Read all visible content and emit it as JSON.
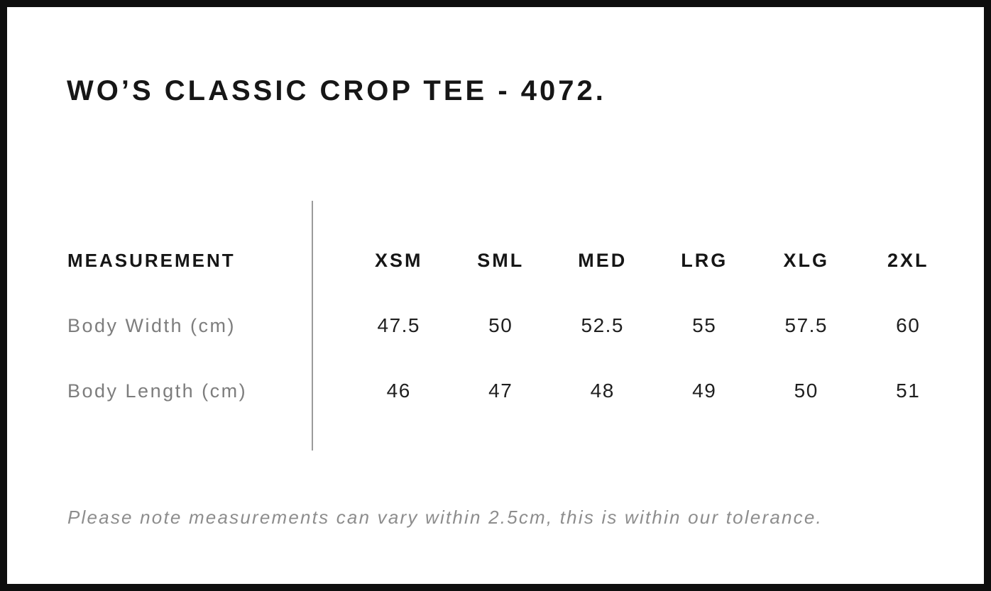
{
  "page": {
    "title": "WO’S CLASSIC CROP TEE - 4072."
  },
  "size_chart": {
    "measurement_header": "MEASUREMENT",
    "size_headers": [
      "XSM",
      "SML",
      "MED",
      "LRG",
      "XLG",
      "2XL"
    ],
    "rows": [
      {
        "label": "Body Width (cm)",
        "values": [
          "47.5",
          "50",
          "52.5",
          "55",
          "57.5",
          "60"
        ]
      },
      {
        "label": "Body Length (cm)",
        "values": [
          "46",
          "47",
          "48",
          "49",
          "50",
          "51"
        ]
      }
    ]
  },
  "footer": {
    "note": "Please note measurements can vary within 2.5cm, this is within our tolerance."
  },
  "chart_data": {
    "type": "table",
    "title": "WO’S CLASSIC CROP TEE - 4072.",
    "columns": [
      "MEASUREMENT",
      "XSM",
      "SML",
      "MED",
      "LRG",
      "XLG",
      "2XL"
    ],
    "rows": [
      [
        "Body Width (cm)",
        47.5,
        50,
        52.5,
        55,
        57.5,
        60
      ],
      [
        "Body Length (cm)",
        46,
        47,
        48,
        49,
        50,
        51
      ]
    ],
    "note": "Please note measurements can vary within 2.5cm, this is within our tolerance.",
    "layout": "measurement labels left of a vertical gray divider; six size columns right of it; grid lines off"
  },
  "colors": {
    "background": "#ffffff",
    "frame_border": "#0e0e0e",
    "heading_text": "#161616",
    "value_text": "#1f1f1f",
    "label_text": "#7d7d7d",
    "note_text": "#8d8d8d",
    "divider": "#9b9b9b"
  }
}
